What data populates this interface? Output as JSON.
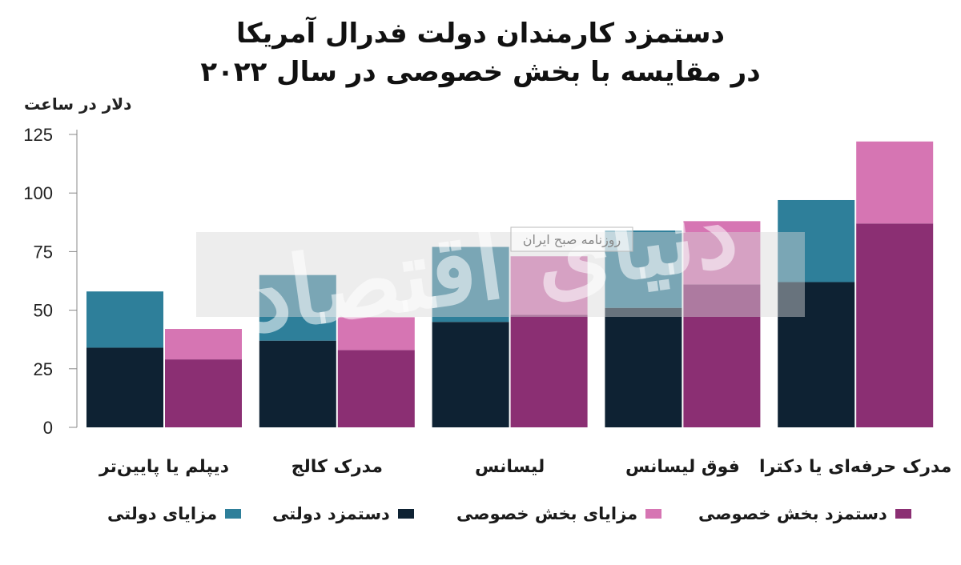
{
  "title_line1": "دستمزد کارمندان دولت فدرال آمریکا",
  "title_line2": "در مقایسه با بخش خصوصی در سال ۲۰۲۲",
  "watermark": {
    "main": "دنیای اقتصاد",
    "sub": "روزنامه صبح ایران"
  },
  "colors": {
    "gov_benefits": "#2e7f9a",
    "gov_wage": "#0e2233",
    "priv_benefits": "#d675b3",
    "priv_wage": "#8b2f73"
  },
  "chart_data": {
    "type": "bar",
    "stacked": true,
    "title": "دستمزد کارمندان دولت فدرال آمریکا در مقایسه با بخش خصوصی در سال ۲۰۲۲",
    "ylabel": "دلار در ساعت",
    "ylim": [
      0,
      125
    ],
    "yticks": [
      0,
      25,
      50,
      75,
      100,
      125
    ],
    "categories": [
      "دیپلم یا پایین‌تر",
      "مدرک کالج",
      "لیسانس",
      "فوق لیسانس",
      "مدرک حرفه‌ای یا دکترا"
    ],
    "groups": [
      {
        "name": "دولتی",
        "series": [
          {
            "name": "دستمزد دولتی",
            "values": [
              34,
              37,
              45,
              51,
              62
            ]
          },
          {
            "name": "مزایای دولتی",
            "values": [
              24,
              28,
              32,
              33,
              35
            ]
          }
        ]
      },
      {
        "name": "خصوصی",
        "series": [
          {
            "name": "دستمزد بخش خصوصی",
            "values": [
              29,
              33,
              48,
              61,
              87
            ]
          },
          {
            "name": "مزایای بخش خصوصی",
            "values": [
              13,
              14,
              25,
              27,
              35
            ]
          }
        ]
      }
    ],
    "legend": [
      "دستمزد بخش خصوصی",
      "مزایای بخش خصوصی",
      "دستمزد دولتی",
      "مزایای دولتی"
    ],
    "legend_position": "bottom",
    "grid": false
  }
}
